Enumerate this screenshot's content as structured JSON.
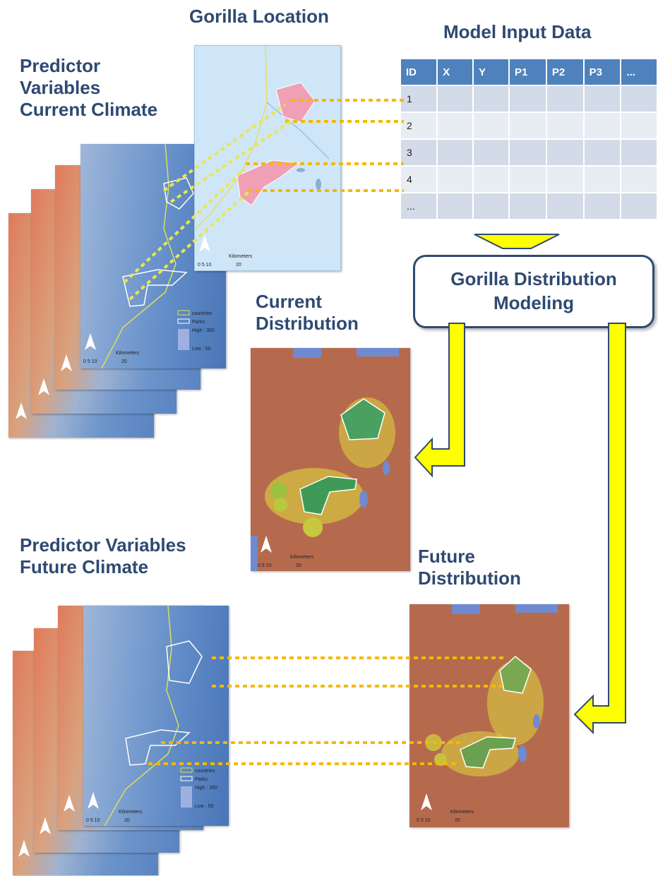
{
  "labels": {
    "gorilla_location": "Gorilla Location",
    "model_input_data": "Model Input Data",
    "predictor_current_1": "Predictor",
    "predictor_current_2": "Variables",
    "predictor_current_3": "Current Climate",
    "current_distribution_1": "Current",
    "current_distribution_2": "Distribution",
    "predictor_future_1": "Predictor Variables",
    "predictor_future_2": "Future Climate",
    "future_distribution_1": "Future",
    "future_distribution_2": "Distribution",
    "model_box": "Gorilla Distribution Modeling"
  },
  "table": {
    "headers": [
      "ID",
      "X",
      "Y",
      "P1",
      "P2",
      "P3",
      "..."
    ],
    "rows": [
      [
        "1",
        "",
        "",
        "",
        "",
        "",
        ""
      ],
      [
        "2",
        "",
        "",
        "",
        "",
        "",
        ""
      ],
      [
        "3",
        "",
        "",
        "",
        "",
        "",
        ""
      ],
      [
        "4",
        "",
        "",
        "",
        "",
        "",
        ""
      ],
      [
        "...",
        "",
        "",
        "",
        "",
        "",
        ""
      ]
    ]
  },
  "map_legend": {
    "countries": "countries",
    "parks": "Parks",
    "high": "High : 350",
    "low": "Low : 50",
    "kilometers": "Kilometers",
    "scale_ticks": "0  5  10",
    "scale_end": "20"
  },
  "colors": {
    "title_text": "#2e4a72",
    "table_header": "#4f81bd",
    "arrow_fill": "#ffff00",
    "arrow_stroke": "#2e4a72",
    "dotted_line": "#f5b800",
    "dotted_line_light": "#e8e84a"
  }
}
